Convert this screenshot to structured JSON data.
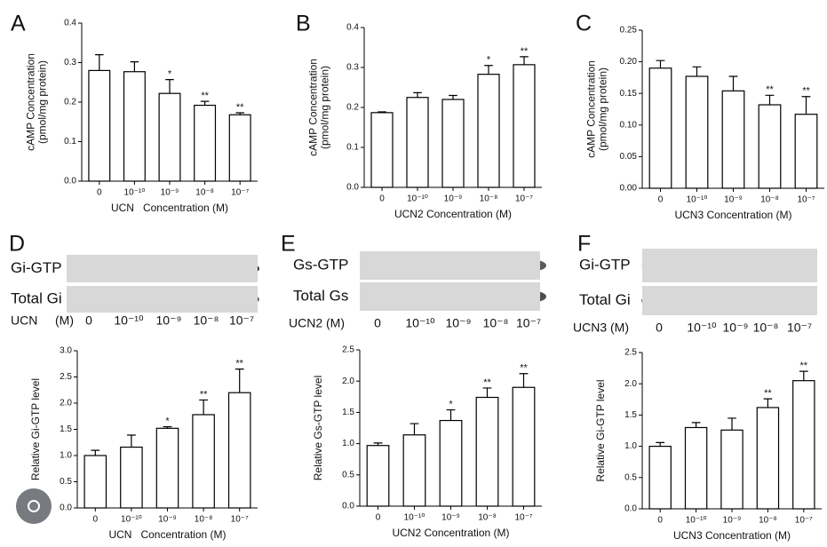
{
  "chart_data": [
    {
      "type": "bar",
      "panel": "A",
      "ylabel": [
        "cAMP Concentration",
        "(pmol/mg protein)"
      ],
      "xlabel": "UCN   Concentration (M)",
      "categories": [
        "0",
        "10⁻¹⁰",
        "10⁻⁹",
        "10⁻⁸",
        "10⁻⁷"
      ],
      "values": [
        0.28,
        0.277,
        0.222,
        0.192,
        0.168
      ],
      "errors": [
        0.04,
        0.025,
        0.035,
        0.01,
        0.005
      ],
      "annotations": [
        null,
        null,
        "*",
        "**",
        "**"
      ],
      "color": "#ffffff",
      "ylim": [
        0,
        0.4
      ],
      "yticks": [
        {
          "value": 0,
          "label": "0.0"
        },
        0.1,
        0.2,
        0.3,
        0.4
      ]
    },
    {
      "type": "bar",
      "panel": "B",
      "ylabel": [
        "cAMP Concentration",
        "(pmol/mg protein)"
      ],
      "xlabel": "UCN2 Concentration (M)",
      "categories": [
        "0",
        "10⁻¹⁰",
        "10⁻⁹",
        "10⁻⁸",
        "10⁻⁷"
      ],
      "values": [
        0.187,
        0.225,
        0.22,
        0.283,
        0.307
      ],
      "errors": [
        0.002,
        0.012,
        0.01,
        0.022,
        0.02
      ],
      "annotations": [
        null,
        null,
        null,
        "*",
        "**"
      ],
      "color": "#ffffff",
      "ylim": [
        0,
        0.4
      ],
      "yticks": [
        {
          "value": 0,
          "label": "0.0"
        },
        0.1,
        0.2,
        0.3,
        0.4
      ]
    },
    {
      "type": "bar",
      "panel": "C",
      "ylabel": [
        "cAMP Concentration",
        "(pmol/mg protein)"
      ],
      "xlabel": "UCN3 Concentration (M)",
      "categories": [
        "0",
        "10⁻¹⁰",
        "10⁻⁹",
        "10⁻⁸",
        "10⁻⁷"
      ],
      "values": [
        0.19,
        0.177,
        0.154,
        0.132,
        0.117
      ],
      "errors": [
        0.012,
        0.015,
        0.023,
        0.015,
        0.028
      ],
      "annotations": [
        null,
        null,
        null,
        "**",
        "**"
      ],
      "color": "#ffffff",
      "ylim": [
        0,
        0.25
      ],
      "yticks": [
        {
          "value": 0,
          "label": "0.00"
        },
        {
          "value": 0.05,
          "label": "0.05"
        },
        {
          "value": 0.1,
          "label": "0.10"
        },
        {
          "value": 0.15,
          "label": "0.15"
        },
        {
          "value": 0.2,
          "label": "0.20"
        },
        {
          "value": 0.25,
          "label": "0.25"
        }
      ]
    },
    {
      "type": "bar",
      "panel": "D",
      "ylabel": [
        "Relative Gi-GTP level"
      ],
      "xlabel": "UCN   Concentration (M)",
      "categories": [
        "0",
        "10⁻¹⁰",
        "10⁻⁹",
        "10⁻⁸",
        "10⁻⁷"
      ],
      "values": [
        1.0,
        1.16,
        1.52,
        1.78,
        2.2
      ],
      "errors": [
        0.1,
        0.23,
        0.03,
        0.28,
        0.45
      ],
      "annotations": [
        null,
        null,
        "*",
        "**",
        "**"
      ],
      "color": "#ffffff",
      "ylim": [
        0,
        3
      ],
      "yticks": [
        {
          "value": 0,
          "label": "0.0"
        },
        0.5,
        {
          "value": 1,
          "label": "1.0"
        },
        1.5,
        {
          "value": 2,
          "label": "2.0"
        },
        2.5,
        {
          "value": 3,
          "label": "3.0"
        }
      ]
    },
    {
      "type": "bar",
      "panel": "E",
      "ylabel": [
        "Relative Gs-GTP level"
      ],
      "xlabel": "UCN2 Concentration (M)",
      "categories": [
        "0",
        "10⁻¹⁰",
        "10⁻⁹",
        "10⁻⁸",
        "10⁻⁷"
      ],
      "values": [
        0.97,
        1.14,
        1.37,
        1.74,
        1.9
      ],
      "errors": [
        0.04,
        0.18,
        0.17,
        0.15,
        0.22
      ],
      "annotations": [
        null,
        null,
        "*",
        "**",
        "**"
      ],
      "color": "#ffffff",
      "ylim": [
        0,
        2.5
      ],
      "yticks": [
        {
          "value": 0,
          "label": "0.0"
        },
        0.5,
        {
          "value": 1,
          "label": "1.0"
        },
        1.5,
        {
          "value": 2,
          "label": "2.0"
        },
        2.5
      ]
    },
    {
      "type": "bar",
      "panel": "F",
      "ylabel": [
        "Relative Gi-GTP level"
      ],
      "xlabel": "UCN3 Concentration (M)",
      "categories": [
        "0",
        "10⁻¹⁰",
        "10⁻⁹",
        "10⁻⁸",
        "10⁻⁷"
      ],
      "values": [
        1.0,
        1.3,
        1.26,
        1.62,
        2.05
      ],
      "errors": [
        0.06,
        0.08,
        0.19,
        0.14,
        0.15
      ],
      "annotations": [
        null,
        null,
        null,
        "**",
        "**"
      ],
      "color": "#ffffff",
      "ylim": [
        0,
        2.5
      ],
      "yticks": [
        {
          "value": 0,
          "label": "0.0"
        },
        0.5,
        {
          "value": 1,
          "label": "1.0"
        },
        1.5,
        {
          "value": 2,
          "label": "2.0"
        },
        2.5
      ]
    }
  ],
  "blots": [
    {
      "rows": [
        "Gi-GTP",
        "Total Gi"
      ],
      "treatment": [
        "UCN",
        "(M)"
      ],
      "lanes": [
        "0",
        "10⁻¹⁰",
        "10⁻⁹",
        "10⁻⁸",
        "10⁻⁷"
      ]
    },
    {
      "rows": [
        "Gs-GTP",
        "Total Gs"
      ],
      "treatment": [
        "UCN2 (M)"
      ],
      "lanes": [
        "0",
        "10⁻¹⁰",
        "10⁻⁹",
        "10⁻⁸",
        "10⁻⁷"
      ]
    },
    {
      "rows": [
        "Gi-GTP",
        "Total Gi"
      ],
      "treatment": [
        "UCN3 (M)"
      ],
      "lanes": [
        "0",
        "10⁻¹⁰",
        "10⁻⁹",
        "10⁻⁸",
        "10⁻⁷"
      ]
    }
  ]
}
